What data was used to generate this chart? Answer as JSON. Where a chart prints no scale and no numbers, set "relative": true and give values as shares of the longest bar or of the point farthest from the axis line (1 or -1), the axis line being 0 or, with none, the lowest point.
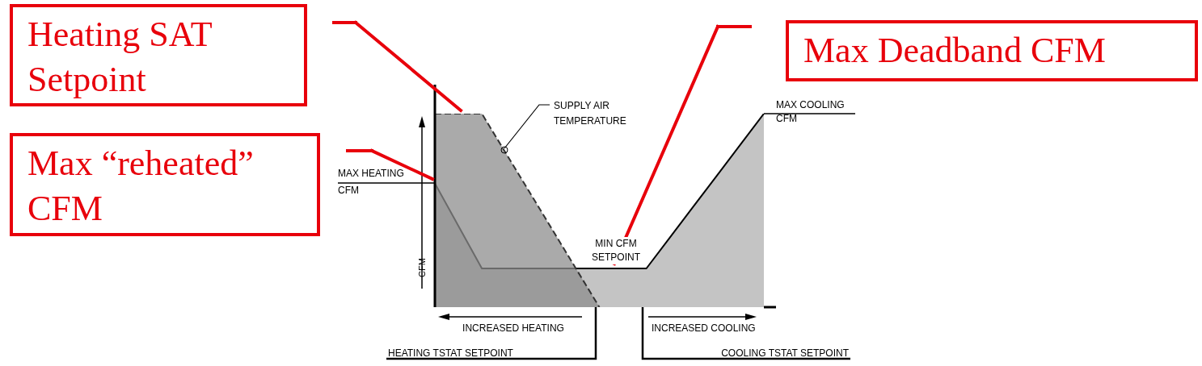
{
  "chart_data": {
    "type": "area",
    "relative": true,
    "ylabel": "CFM",
    "grid": false,
    "legend": false,
    "categories": [
      null,
      null,
      null,
      null,
      null,
      null,
      null,
      null,
      null,
      null,
      null,
      null,
      null,
      null,
      null
    ],
    "series": [
      {
        "color": "#c4c4c4",
        "values": [
          0.64,
          0.42,
          0.2,
          0.2,
          0.2,
          0.2,
          0.2,
          0.2,
          0.2,
          0.2,
          0.36,
          0.52,
          0.68,
          0.84,
          1
        ]
      },
      {
        "name": "SUPPLY AIR TEMPERATURE",
        "color": "#8e8e8e",
        "line_style": "dashed",
        "values": [
          1,
          1,
          1,
          0.8,
          0.6,
          0.4,
          0.2,
          0,
          null,
          null,
          null,
          null,
          null,
          null,
          null
        ]
      }
    ],
    "annotations": [
      "MAX HEATING CFM",
      "MAX COOLING CFM",
      "MIN CFM SETPOINT",
      "INCREASED HEATING",
      "INCREASED COOLING",
      "HEATING TSTAT SETPOINT",
      "COOLING TSTAT SETPOINT",
      "Heating SAT Setpoint",
      "Max “reheated” CFM",
      "Max Deadband CFM"
    ]
  }
}
